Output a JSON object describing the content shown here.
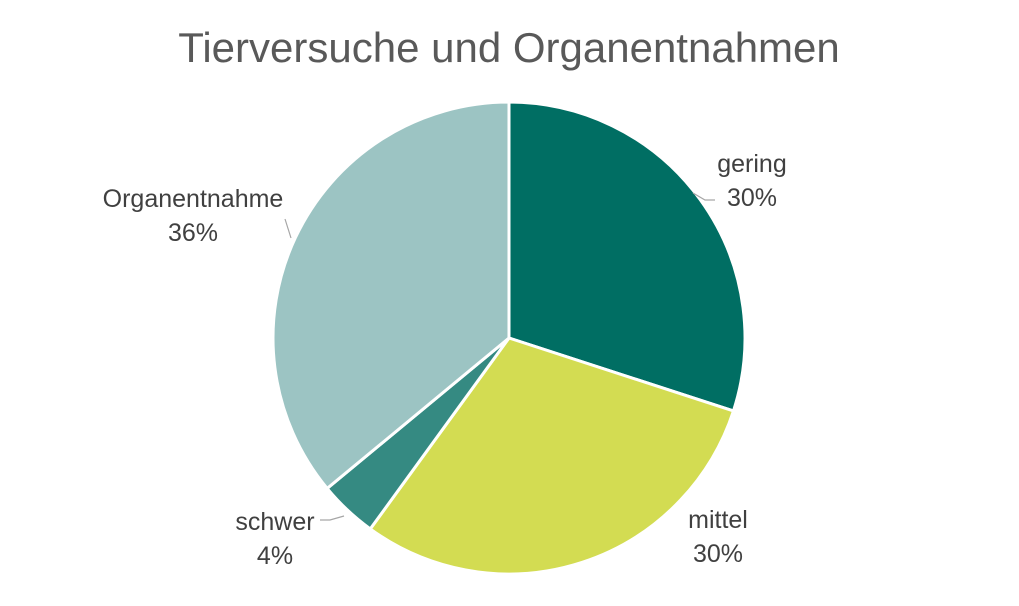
{
  "chart_data": {
    "type": "pie",
    "title": "Tierversuche und Organentnahmen",
    "slices": [
      {
        "label": "gering",
        "value": 30,
        "value_label": "30%",
        "color": "#006E63"
      },
      {
        "label": "mittel",
        "value": 30,
        "value_label": "30%",
        "color": "#D3DC52"
      },
      {
        "label": "schwer",
        "value": 4,
        "value_label": "4%",
        "color": "#358A82"
      },
      {
        "label": "Organentnahme",
        "value": 36,
        "value_label": "36%",
        "color": "#9CC4C3"
      }
    ],
    "start_angle_deg": 0,
    "direction": "clockwise",
    "legend": "none"
  }
}
